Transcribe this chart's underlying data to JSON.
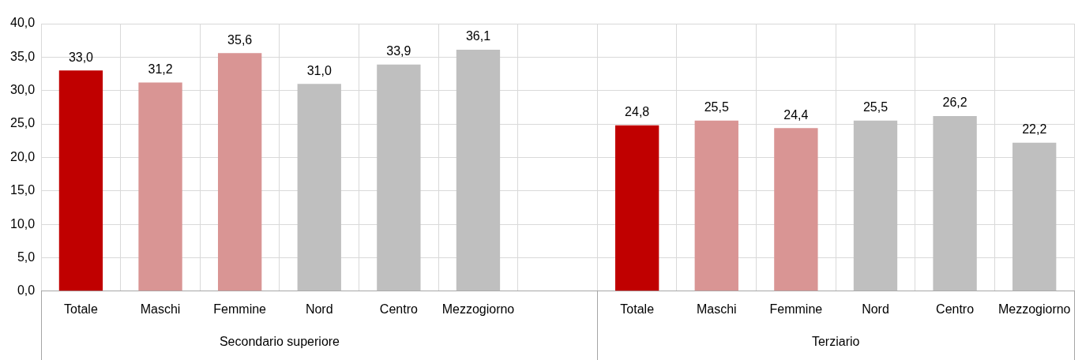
{
  "chart_data": {
    "type": "bar",
    "categories": [
      "Totale",
      "Maschi",
      "Femmine",
      "Nord",
      "Centro",
      "Mezzogiorno",
      null,
      "Totale",
      "Maschi",
      "Femmine",
      "Nord",
      "Centro",
      "Mezzogiorno"
    ],
    "values": [
      33.0,
      31.2,
      35.6,
      31.0,
      33.9,
      36.1,
      null,
      24.8,
      25.5,
      24.4,
      25.5,
      26.2,
      22.2
    ],
    "colors": [
      "#c00000",
      "#d99594",
      "#d99594",
      "#bfbfbf",
      "#bfbfbf",
      "#bfbfbf",
      "#bfbfbf",
      "#c00000",
      "#d99594",
      "#d99594",
      "#bfbfbf",
      "#bfbfbf",
      "#bfbfbf"
    ],
    "value_labels": [
      "33,0",
      "31,2",
      "35,6",
      "31,0",
      "33,9",
      "36,1",
      null,
      "24,8",
      "25,5",
      "24,4",
      "25,5",
      "26,2",
      "22,2"
    ],
    "ylim": [
      0,
      40
    ],
    "yticks": [
      {
        "value": 0,
        "label": "0,0"
      },
      {
        "value": 5,
        "label": "5,0"
      },
      {
        "value": 10,
        "label": "10,0"
      },
      {
        "value": 15,
        "label": "15,0"
      },
      {
        "value": 20,
        "label": "20,0"
      },
      {
        "value": 25,
        "label": "25,0"
      },
      {
        "value": 30,
        "label": "30,0"
      },
      {
        "value": 35,
        "label": "35,0"
      },
      {
        "value": 40,
        "label": "40,0"
      }
    ],
    "annotations": [
      "Secondario superiore",
      "Terziario"
    ],
    "grid": true,
    "legend": false
  }
}
